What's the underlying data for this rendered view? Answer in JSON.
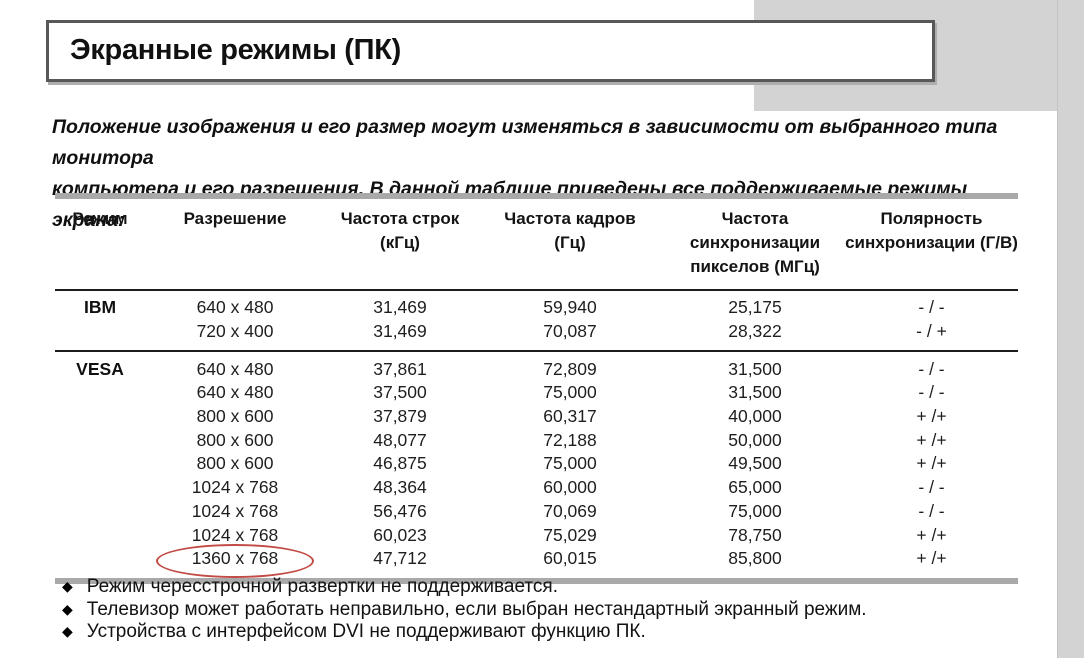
{
  "header": {
    "title": "Экранные режимы (ПК)"
  },
  "intro": {
    "lines": [
      "Положение изображения и его размер могут изменяться в зависимости от выбранного типа монитора",
      "компьютера и его разрешения. В данной таблице приведены все поддерживаемые режимы экрана:"
    ]
  },
  "table": {
    "headers": [
      {
        "line1": "Режим",
        "line2": ""
      },
      {
        "line1": "Разрешение",
        "line2": ""
      },
      {
        "line1": "Частота строк",
        "line2": "(кГц)"
      },
      {
        "line1": "Частота кадров",
        "line2": "(Гц)"
      },
      {
        "line1": "Частота синхронизации",
        "line2": "пикселов (МГц)"
      },
      {
        "line1": "Полярность",
        "line2": "синхронизации (Г/В)"
      }
    ],
    "sections": [
      {
        "mode": "IBM",
        "rows": [
          {
            "resolution": "640 x 480",
            "h_freq_khz": "31,469",
            "v_freq_hz": "59,940",
            "pixel_clock_mhz": "25,175",
            "polarity": "- / -"
          },
          {
            "resolution": "720 x 400",
            "h_freq_khz": "31,469",
            "v_freq_hz": "70,087",
            "pixel_clock_mhz": "28,322",
            "polarity": "- / +"
          }
        ]
      },
      {
        "mode": "VESA",
        "rows": [
          {
            "resolution": "640 x 480",
            "h_freq_khz": "37,861",
            "v_freq_hz": "72,809",
            "pixel_clock_mhz": "31,500",
            "polarity": "- / -"
          },
          {
            "resolution": "640 x 480",
            "h_freq_khz": "37,500",
            "v_freq_hz": "75,000",
            "pixel_clock_mhz": "31,500",
            "polarity": "- / -"
          },
          {
            "resolution": "800 x 600",
            "h_freq_khz": "37,879",
            "v_freq_hz": "60,317",
            "pixel_clock_mhz": "40,000",
            "polarity": "+ /+"
          },
          {
            "resolution": "800 x 600",
            "h_freq_khz": "48,077",
            "v_freq_hz": "72,188",
            "pixel_clock_mhz": "50,000",
            "polarity": "+ /+"
          },
          {
            "resolution": "800 x 600",
            "h_freq_khz": "46,875",
            "v_freq_hz": "75,000",
            "pixel_clock_mhz": "49,500",
            "polarity": "+ /+"
          },
          {
            "resolution": "1024 x 768",
            "h_freq_khz": "48,364",
            "v_freq_hz": "60,000",
            "pixel_clock_mhz": "65,000",
            "polarity": "- / -"
          },
          {
            "resolution": "1024 x 768",
            "h_freq_khz": "56,476",
            "v_freq_hz": "70,069",
            "pixel_clock_mhz": "75,000",
            "polarity": "- / -"
          },
          {
            "resolution": "1024 x 768",
            "h_freq_khz": "60,023",
            "v_freq_hz": "75,029",
            "pixel_clock_mhz": "78,750",
            "polarity": "+ /+"
          },
          {
            "resolution": "1360 x 768",
            "h_freq_khz": "47,712",
            "v_freq_hz": "60,015",
            "pixel_clock_mhz": "85,800",
            "polarity": "+ /+",
            "highlighted": true
          }
        ]
      }
    ]
  },
  "notes": {
    "bullet": "◆",
    "items": [
      "Режим чересстрочной развертки не поддерживается.",
      "Телевизор может работать неправильно, если выбран нестандартный экранный режим.",
      "Устройства с интерфейсом DVI не поддерживают функцию ПК."
    ]
  },
  "colors": {
    "outer_gray": "#d3d3d3",
    "bar_gray": "#a9a9a9",
    "line_black": "#1c1c1c",
    "title_border": "#57585a",
    "title_shadow": "#aeaeae",
    "highlight_red": "#c24b45"
  }
}
